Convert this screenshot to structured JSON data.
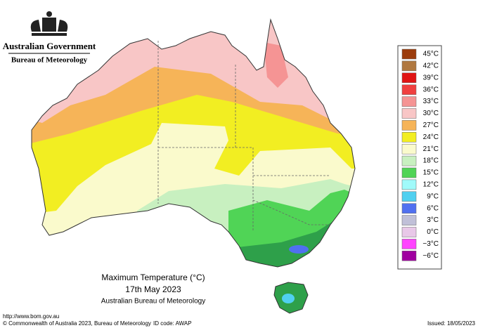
{
  "header": {
    "government": "Australian Government",
    "bureau": "Bureau of Meteorology"
  },
  "legend": [
    {
      "label": "45°C",
      "color": "#9c3c0c"
    },
    {
      "label": "42°C",
      "color": "#b07840"
    },
    {
      "label": "39°C",
      "color": "#e01414"
    },
    {
      "label": "36°C",
      "color": "#f04040"
    },
    {
      "label": "33°C",
      "color": "#f59494"
    },
    {
      "label": "30°C",
      "color": "#f8c6c6"
    },
    {
      "label": "27°C",
      "color": "#f6b458"
    },
    {
      "label": "24°C",
      "color": "#f2ee22"
    },
    {
      "label": "21°C",
      "color": "#fafacc"
    },
    {
      "label": "18°C",
      "color": "#c8f0c0"
    },
    {
      "label": "15°C",
      "color": "#50d456"
    },
    {
      "label": "12°C",
      "color": "#a0fafa"
    },
    {
      "label": "9°C",
      "color": "#50d0f0"
    },
    {
      "label": "6°C",
      "color": "#5070f0"
    },
    {
      "label": "3°C",
      "color": "#c0c0d8"
    },
    {
      "label": "0°C",
      "color": "#e8c8e8"
    },
    {
      "label": "−3°C",
      "color": "#ff44ff"
    },
    {
      "label": "−6°C",
      "color": "#a000a0"
    }
  ],
  "caption": {
    "title": "Maximum Temperature (°C)",
    "date": "17th May 2023",
    "source": "Australian Bureau of Meteorology"
  },
  "footer": {
    "url": "http://www.bom.gov.au",
    "copyright": "© Commonwealth of Australia 2023, Bureau of Meteorology",
    "id": "ID code: AWAP",
    "issued": "Issued: 18/05/2023"
  }
}
